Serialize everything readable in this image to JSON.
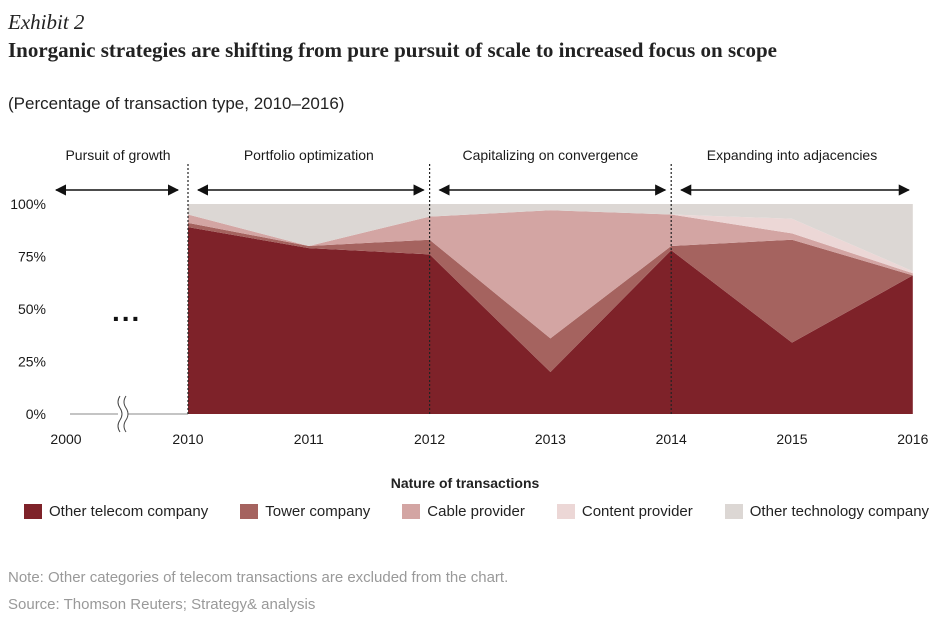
{
  "header": {
    "exhibit": "Exhibit 2",
    "title": "Inorganic strategies are shifting from pure pursuit of scale to increased focus on scope",
    "subtitle": "(Percentage of transaction type, 2010–2016)"
  },
  "phases": [
    {
      "label": "Pursuit of growth",
      "from": 2000,
      "to": 2010
    },
    {
      "label": "Portfolio optimization",
      "from": 2010,
      "to": 2012
    },
    {
      "label": "Capitalizing on convergence",
      "from": 2012,
      "to": 2014
    },
    {
      "label": "Expanding into adjacencies",
      "from": 2014,
      "to": 2016
    }
  ],
  "chart_data": {
    "type": "area",
    "stacked": true,
    "x": [
      2010,
      2011,
      2012,
      2013,
      2014,
      2015,
      2016
    ],
    "x_tick_labels": [
      "2000",
      "2010",
      "2011",
      "2012",
      "2013",
      "2014",
      "2015",
      "2016"
    ],
    "y_tick_labels": [
      "0%",
      "25%",
      "50%",
      "75%",
      "100%"
    ],
    "ylim": [
      0,
      100
    ],
    "axis_break_after": "2000",
    "ellipsis": "...",
    "series": [
      {
        "name": "Other telecom company",
        "color": "#7e2229",
        "values": [
          89,
          79,
          76,
          20,
          78,
          34,
          66
        ]
      },
      {
        "name": "Tower company",
        "color": "#a5635f",
        "values": [
          2,
          1,
          7,
          16,
          2,
          49,
          0
        ]
      },
      {
        "name": "Cable provider",
        "color": "#d3a5a3",
        "values": [
          4,
          0,
          11,
          61,
          15,
          3,
          1
        ]
      },
      {
        "name": "Content provider",
        "color": "#ecd7d6",
        "values": [
          0,
          0,
          0,
          0,
          0,
          7,
          1
        ]
      },
      {
        "name": "Other technology company",
        "color": "#dcd7d4",
        "values": [
          5,
          20,
          6,
          3,
          5,
          7,
          32
        ]
      }
    ],
    "legend_title": "Nature of transactions",
    "legend_position": "bottom"
  },
  "footer": {
    "note": "Note: Other categories of telecom transactions are excluded from the chart.",
    "source": "Source: Thomson Reuters; Strategy& analysis"
  }
}
